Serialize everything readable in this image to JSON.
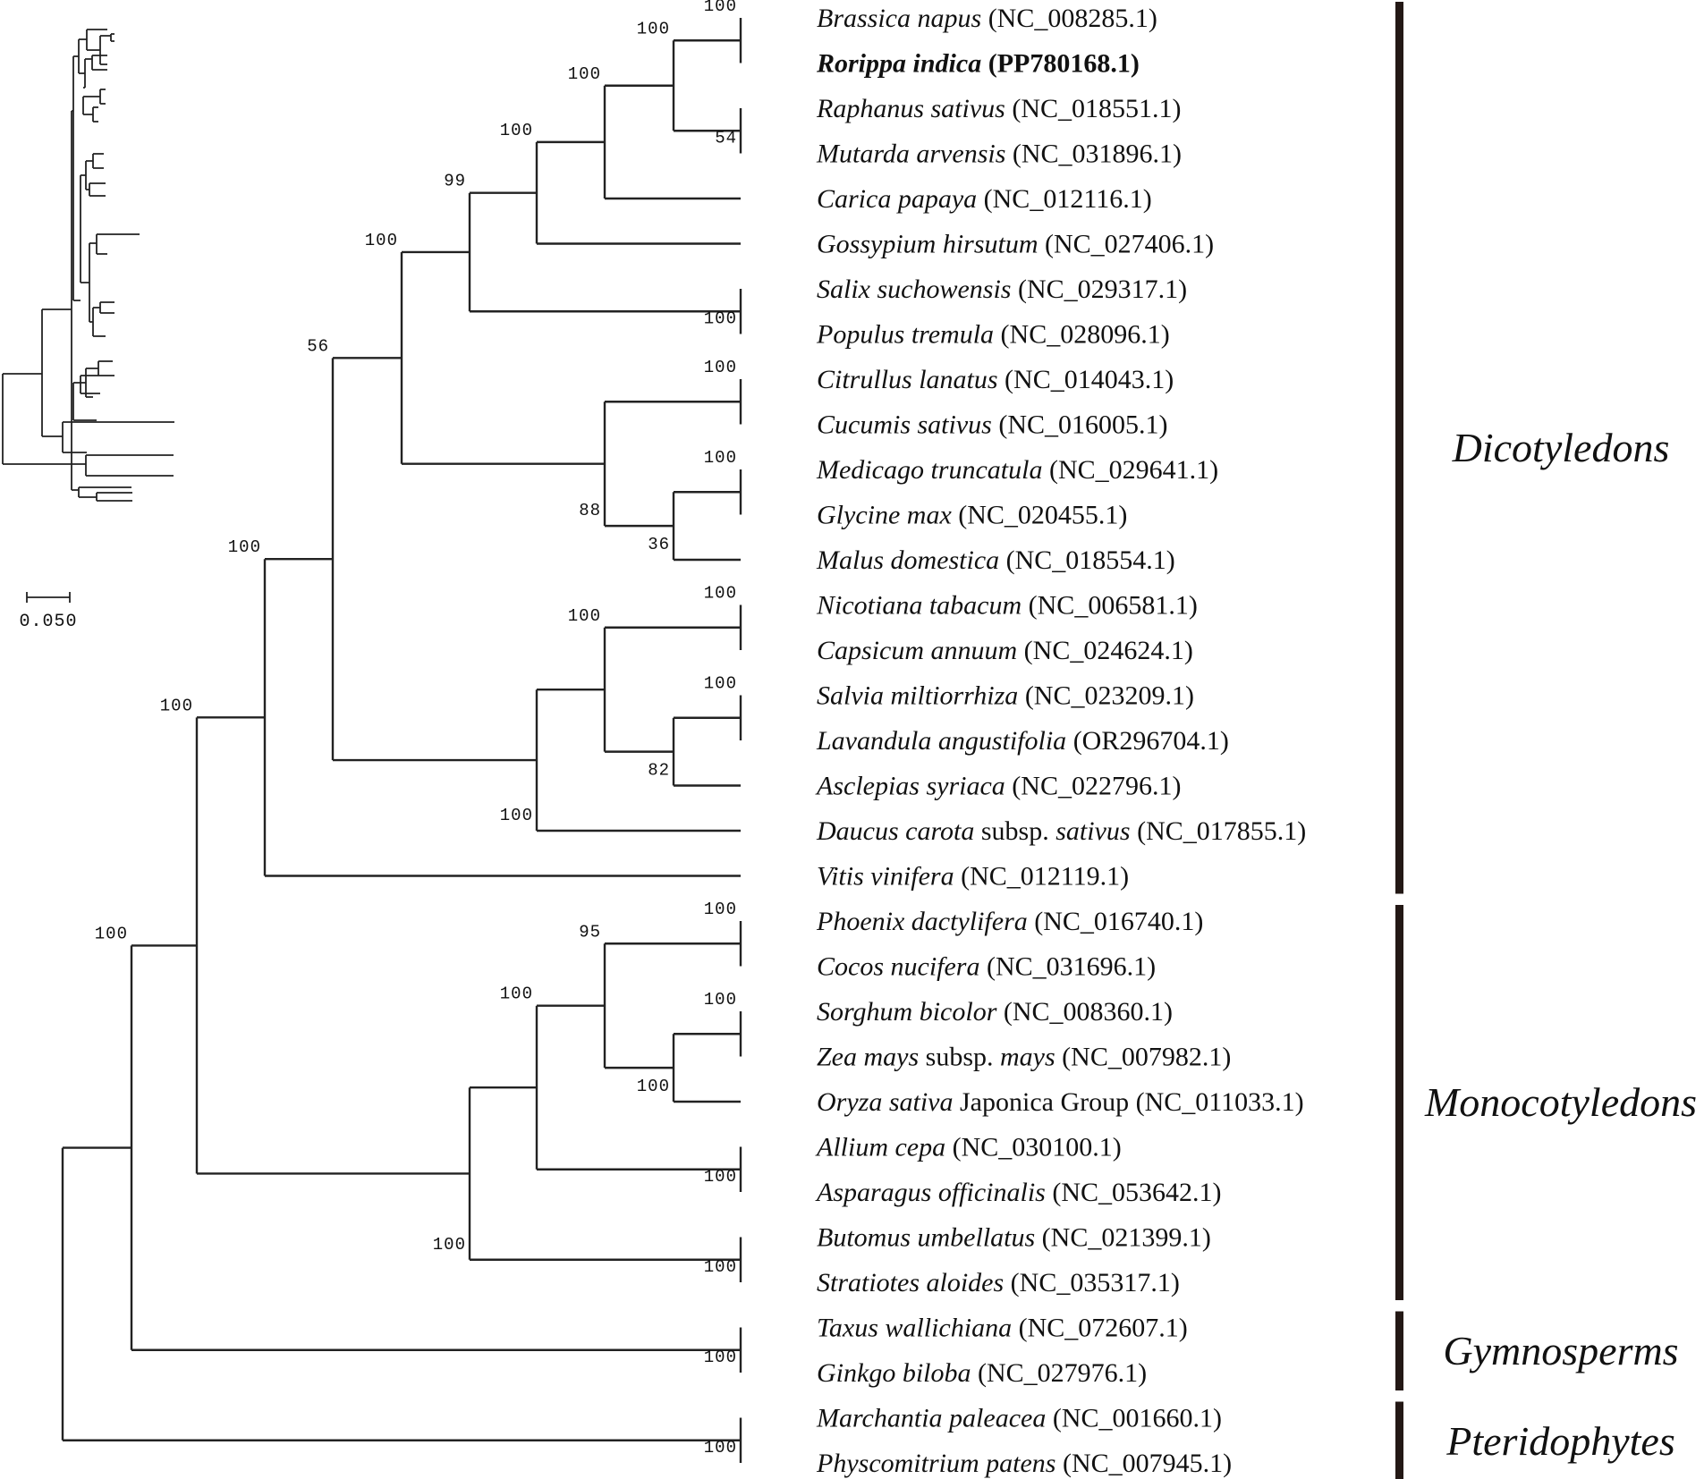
{
  "taxa": [
    {
      "species": "Brassica napus",
      "accession": "(NC_008285.1)"
    },
    {
      "species": "Rorippa indica",
      "accession": "(PP780168.1)",
      "bold": true
    },
    {
      "species": "Raphanus sativus",
      "accession": "(NC_018551.1)"
    },
    {
      "species": "Mutarda arvensis",
      "accession": "(NC_031896.1)"
    },
    {
      "species": "Carica papaya",
      "accession": "(NC_012116.1)"
    },
    {
      "species": "Gossypium hirsutum",
      "accession": "(NC_027406.1)"
    },
    {
      "species": "Salix suchowensis",
      "accession": "(NC_029317.1)"
    },
    {
      "species": "Populus tremula",
      "accession": "(NC_028096.1)"
    },
    {
      "species": "Citrullus lanatus",
      "accession": "(NC_014043.1)"
    },
    {
      "species": "Cucumis sativus",
      "accession": "(NC_016005.1)"
    },
    {
      "species": "Medicago truncatula",
      "accession": "(NC_029641.1)"
    },
    {
      "species": "Glycine max",
      "accession": "(NC_020455.1)"
    },
    {
      "species": "Malus domestica",
      "accession": "(NC_018554.1)"
    },
    {
      "species": "Nicotiana tabacum",
      "accession": "(NC_006581.1)"
    },
    {
      "species": "Capsicum annuum",
      "accession": "(NC_024624.1)"
    },
    {
      "species": "Salvia miltiorrhiza",
      "accession": "(NC_023209.1)"
    },
    {
      "species": "Lavandula angustifolia",
      "accession": "(OR296704.1)"
    },
    {
      "species": "Asclepias syriaca",
      "accession": "(NC_022796.1)"
    },
    {
      "species": "Daucus carota",
      "infra": "subsp.",
      "infra_name": "sativus",
      "accession": "(NC_017855.1)"
    },
    {
      "species": "Vitis vinifera",
      "accession": "(NC_012119.1)"
    },
    {
      "species": "Phoenix dactylifera",
      "accession": "(NC_016740.1)"
    },
    {
      "species": "Cocos nucifera",
      "accession": "(NC_031696.1)"
    },
    {
      "species": "Sorghum bicolor",
      "accession": "(NC_008360.1)"
    },
    {
      "species": "Zea mays",
      "infra": "subsp.",
      "infra_name": "mays",
      "accession": "(NC_007982.1)"
    },
    {
      "species": "Oryza sativa",
      "infra": "Japonica Group",
      "accession": "(NC_011033.1)"
    },
    {
      "species": "Allium cepa",
      "accession": "(NC_030100.1)"
    },
    {
      "species": "Asparagus officinalis",
      "accession": "(NC_053642.1)"
    },
    {
      "species": "Butomus umbellatus",
      "accession": "(NC_021399.1)"
    },
    {
      "species": "Stratiotes aloides",
      "accession": "(NC_035317.1)"
    },
    {
      "species": "Taxus wallichiana",
      "accession": "(NC_072607.1)"
    },
    {
      "species": "Ginkgo biloba",
      "accession": "(NC_027976.1)"
    },
    {
      "species": "Marchantia paleacea",
      "accession": "(NC_001660.1)"
    },
    {
      "species": "Physcomitrium patens",
      "accession": "(NC_007945.1)"
    }
  ],
  "bootstrap": [
    {
      "id": "n_brassica_rorippa",
      "value": "100"
    },
    {
      "id": "n_raphanus_mutarda",
      "value": "54"
    },
    {
      "id": "n_brassicaceae",
      "value": "100"
    },
    {
      "id": "n_brassicales",
      "value": "100"
    },
    {
      "id": "n_malvids",
      "value": "100"
    },
    {
      "id": "n_salix_populus",
      "value": "100"
    },
    {
      "id": "n_rosids_a",
      "value": "99"
    },
    {
      "id": "n_cucurbits",
      "value": "100"
    },
    {
      "id": "n_medicago_glycine",
      "value": "100"
    },
    {
      "id": "n_fabids_b",
      "value": "36"
    },
    {
      "id": "n_fabids_a",
      "value": "88"
    },
    {
      "id": "n_rosids",
      "value": "100"
    },
    {
      "id": "n_solanaceae",
      "value": "100"
    },
    {
      "id": "n_salvia_lavandula",
      "value": "100"
    },
    {
      "id": "n_lamiids",
      "value": "82"
    },
    {
      "id": "n_asterids_a",
      "value": "100"
    },
    {
      "id": "n_asterids",
      "value": "100"
    },
    {
      "id": "n_core_eudicots",
      "value": "56"
    },
    {
      "id": "n_eudicots",
      "value": "100"
    },
    {
      "id": "n_palms",
      "value": "100"
    },
    {
      "id": "n_sorghum_zea",
      "value": "100"
    },
    {
      "id": "n_poaceae",
      "value": "100"
    },
    {
      "id": "n_commelinids",
      "value": "95"
    },
    {
      "id": "n_asparagales",
      "value": "100"
    },
    {
      "id": "n_monocots_a",
      "value": "100"
    },
    {
      "id": "n_alismatales",
      "value": "100"
    },
    {
      "id": "n_monocots",
      "value": "100"
    },
    {
      "id": "n_angiosperms",
      "value": "100"
    },
    {
      "id": "n_gymnosperms",
      "value": "100"
    },
    {
      "id": "n_seed_plants",
      "value": "100"
    },
    {
      "id": "n_bryophytes",
      "value": "100"
    }
  ],
  "groups": [
    {
      "name": "Dicotyledons",
      "from": 0,
      "to": 19
    },
    {
      "name": "Monocotyledons",
      "from": 20,
      "to": 28
    },
    {
      "name": "Gymnosperms",
      "from": 29,
      "to": 30
    },
    {
      "name": "Pteridophytes",
      "from": 31,
      "to": 32
    }
  ],
  "scale_bar": {
    "label": "0.050"
  },
  "colors": {
    "line": "#222222",
    "bar": "#231815",
    "text": "#111111"
  }
}
